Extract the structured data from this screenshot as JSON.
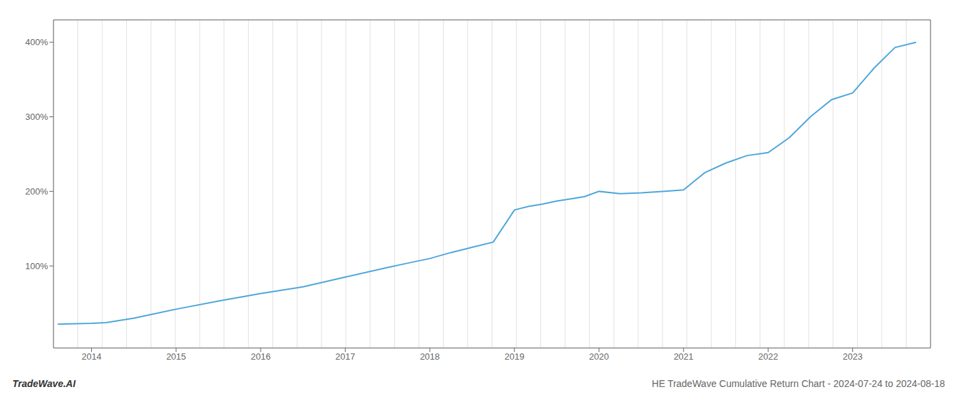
{
  "chart_data": {
    "type": "line",
    "title": "HE TradeWave Cumulative Return Chart - 2024-07-24 to 2024-08-18",
    "annotations": [
      "TradeWave.AI"
    ],
    "x": [
      2013.6,
      2014.0,
      2014.17,
      2014.5,
      2015.0,
      2015.5,
      2016.0,
      2016.5,
      2017.0,
      2017.5,
      2017.75,
      2018.0,
      2018.25,
      2018.5,
      2018.75,
      2019.0,
      2019.17,
      2019.33,
      2019.5,
      2019.67,
      2019.83,
      2020.0,
      2020.25,
      2020.5,
      2020.75,
      2021.0,
      2021.25,
      2021.5,
      2021.75,
      2022.0,
      2022.25,
      2022.5,
      2022.75,
      2023.0,
      2023.25,
      2023.5,
      2023.75
    ],
    "values": [
      22,
      23,
      24,
      30,
      42,
      53,
      63,
      72,
      85,
      98,
      104,
      110,
      118,
      125,
      132,
      175,
      180,
      183,
      187,
      190,
      193,
      200,
      197,
      198,
      200,
      202,
      225,
      238,
      248,
      252,
      272,
      300,
      323,
      332,
      365,
      393,
      400
    ],
    "color": "#4da6d9",
    "xlim": [
      2013.55,
      2023.92
    ],
    "xticks": [
      2014,
      2015,
      2016,
      2017,
      2018,
      2019,
      2020,
      2021,
      2022,
      2023
    ],
    "ylim": [
      -10,
      430
    ],
    "yticks": [
      {
        "value": 100,
        "label": "100%"
      },
      {
        "value": 200,
        "label": "200%"
      },
      {
        "value": 300,
        "label": "300%"
      },
      {
        "value": 400,
        "label": "400%"
      }
    ],
    "grid": true
  }
}
